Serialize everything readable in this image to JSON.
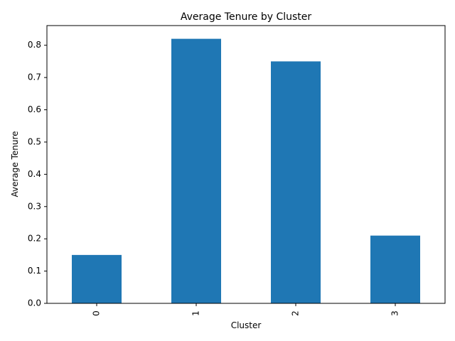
{
  "chart_data": {
    "type": "bar",
    "title": "Average Tenure by Cluster",
    "xlabel": "Cluster",
    "ylabel": "Average Tenure",
    "categories": [
      "0",
      "1",
      "2",
      "3"
    ],
    "values": [
      0.15,
      0.82,
      0.75,
      0.21
    ],
    "ylim": [
      0,
      0.861
    ],
    "yticks": [
      "0.0",
      "0.1",
      "0.2",
      "0.3",
      "0.4",
      "0.5",
      "0.6",
      "0.7",
      "0.8"
    ],
    "grid": false,
    "legend": "none",
    "bar_color": "#1f77b4"
  }
}
